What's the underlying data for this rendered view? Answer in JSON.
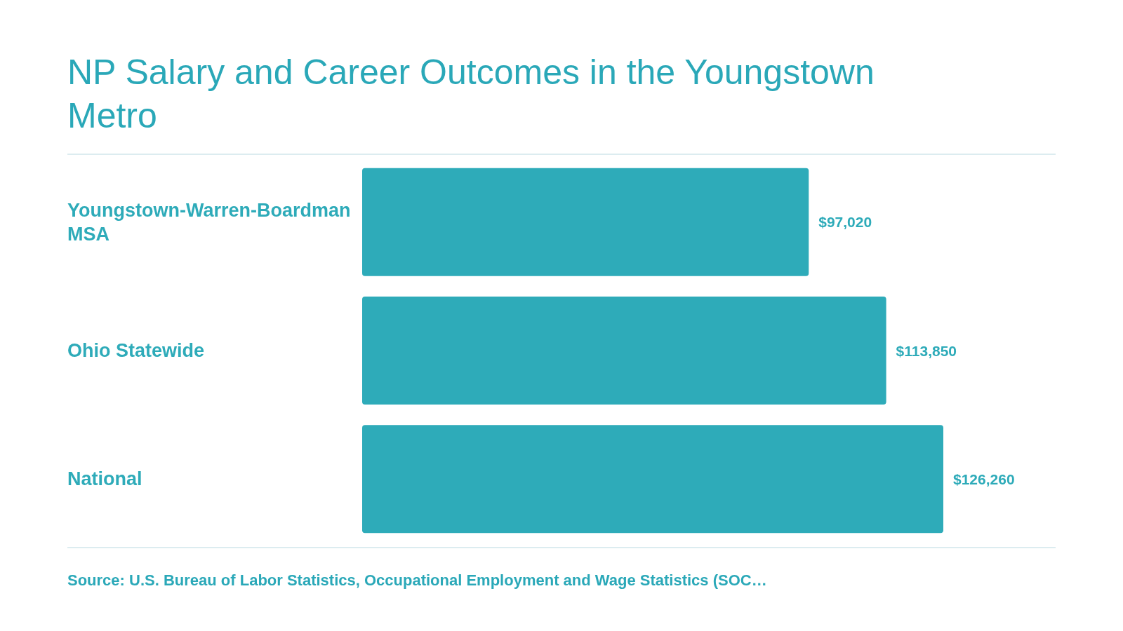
{
  "chart_data": {
    "type": "bar",
    "orientation": "horizontal",
    "title": "NP Salary and Career Outcomes in the Youngstown Metro",
    "categories": [
      "Youngstown-Warren-Boardman MSA",
      "Ohio Statewide",
      "National"
    ],
    "values": [
      97020,
      113850,
      126260
    ],
    "color": "#2eabb9",
    "value_labels": [
      "$97,020",
      "$113,850",
      "$126,260"
    ],
    "annotations": [
      "Source: U.S. Bureau of Labor Statistics, Occupational Employment and Wage Statistics (SOC…"
    ]
  }
}
